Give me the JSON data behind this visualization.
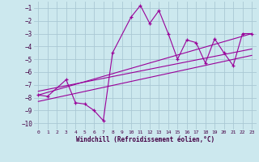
{
  "xlabel": "Windchill (Refroidissement éolien,°C)",
  "bg_color": "#cce8ee",
  "grid_color": "#aac8d4",
  "line_color": "#990099",
  "xlim": [
    -0.5,
    23.5
  ],
  "ylim": [
    -10.5,
    -0.5
  ],
  "xticks": [
    0,
    1,
    2,
    3,
    4,
    5,
    6,
    7,
    8,
    9,
    10,
    11,
    12,
    13,
    14,
    15,
    16,
    17,
    18,
    19,
    20,
    21,
    22,
    23
  ],
  "yticks": [
    -1,
    -2,
    -3,
    -4,
    -5,
    -6,
    -7,
    -8,
    -9,
    -10
  ],
  "main_x": [
    0,
    1,
    3,
    4,
    5,
    6,
    7,
    8,
    10,
    11,
    12,
    13,
    14,
    15,
    16,
    17,
    18,
    19,
    20,
    21,
    22,
    23
  ],
  "main_y": [
    -7.8,
    -7.9,
    -6.6,
    -8.4,
    -8.5,
    -9.0,
    -9.8,
    -4.5,
    -1.7,
    -0.8,
    -2.2,
    -1.2,
    -3.0,
    -5.0,
    -3.5,
    -3.7,
    -5.3,
    -3.4,
    -4.5,
    -5.5,
    -3.0,
    -3.0
  ],
  "line1_x": [
    0,
    23
  ],
  "line1_y": [
    -7.8,
    -3.0
  ],
  "line2_x": [
    0,
    23
  ],
  "line2_y": [
    -7.5,
    -4.2
  ],
  "line3_x": [
    0,
    23
  ],
  "line3_y": [
    -8.3,
    -4.7
  ]
}
